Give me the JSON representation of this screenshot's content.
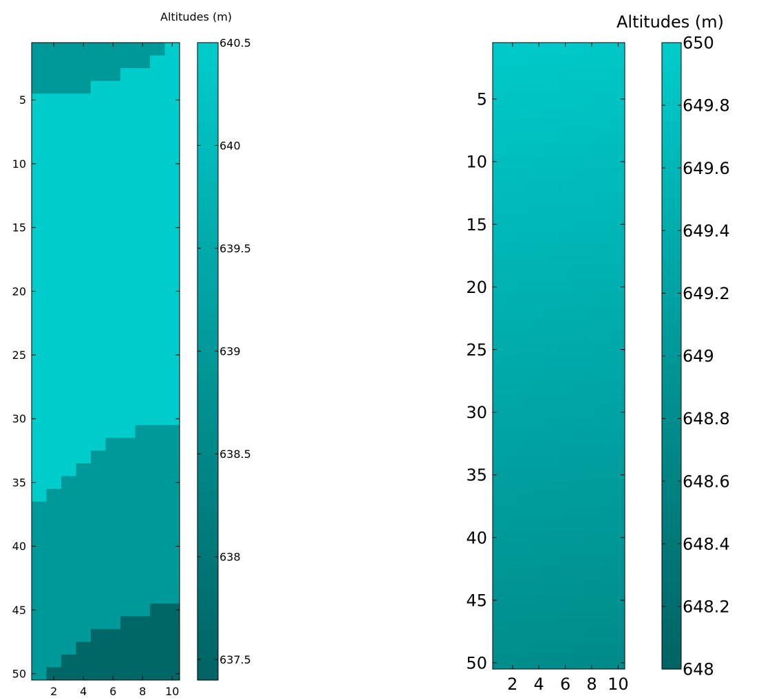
{
  "colors": {
    "low": "#006363",
    "high": "#00cccc",
    "left_levels": [
      "#006666",
      "#009999",
      "#00cccc"
    ],
    "frame": "#000000",
    "background": "#ffffff"
  },
  "chart_data": [
    {
      "type": "heatmap",
      "title": "",
      "xlabel": "",
      "ylabel": "",
      "grid": false,
      "x_ticks": [
        2,
        4,
        6,
        8,
        10
      ],
      "y_ticks": [
        5,
        10,
        15,
        20,
        25,
        30,
        35,
        40,
        45,
        50
      ],
      "xlim": [
        0.5,
        10.5
      ],
      "ylim": [
        0.5,
        50.5
      ],
      "y_direction": "reverse",
      "columns": 10,
      "rows": 50,
      "value_field": "level boundaries per column: rows above first_dark_row are 639.5 where row > last_mid_top_row, rows up to last_mid_top_row are 639.0, rows from first_mid_bottom_row to 50 are 639.0, rows from first_dark_row to 50 are 638.0",
      "levels": [
        638.0,
        639.0,
        640.0
      ],
      "regions": {
        "top_mid_last_row_by_column": [
          4,
          4,
          4,
          4,
          3,
          3,
          2,
          2,
          1,
          0
        ],
        "bottom_mid_first_row_by_column": [
          37,
          36,
          35,
          34,
          33,
          32,
          32,
          31,
          31,
          31
        ],
        "bottom_dark_first_row_by_column": [
          51,
          50,
          49,
          48,
          47,
          47,
          46,
          46,
          45,
          45
        ]
      },
      "colorbar": {
        "label": "Altitudes (m)",
        "min": 637.4,
        "max": 640.5,
        "ticks": [
          640.5,
          640,
          639.5,
          639,
          638.5,
          638,
          637.5
        ],
        "tick_labels": [
          "640.5",
          "640",
          "639.5",
          "639",
          "638.5",
          "638",
          "637.5"
        ]
      }
    },
    {
      "type": "heatmap",
      "title": "",
      "xlabel": "",
      "ylabel": "",
      "grid": false,
      "x_ticks": [
        2,
        4,
        6,
        8,
        10
      ],
      "y_ticks": [
        5,
        10,
        15,
        20,
        25,
        30,
        35,
        40,
        45,
        50
      ],
      "xlim": [
        0.5,
        10.5
      ],
      "ylim": [
        0.5,
        50.5
      ],
      "y_direction": "reverse",
      "columns": 10,
      "rows": 50,
      "value_field": "smooth gradient: 649.95 at row 1, column 1 decreasing to 648.75 at row 50, column 10",
      "corner_values": {
        "top_left": 649.95,
        "top_right": 649.9,
        "bottom_left": 648.8,
        "bottom_right": 648.75
      },
      "colorbar": {
        "label": "Altitudes (m)",
        "min": 648,
        "max": 650,
        "ticks": [
          650,
          649.8,
          649.6,
          649.4,
          649.2,
          649,
          648.8,
          648.6,
          648.4,
          648.2,
          648
        ],
        "tick_labels": [
          "650",
          "649.8",
          "649.6",
          "649.4",
          "649.2",
          "649",
          "648.8",
          "648.6",
          "648.4",
          "648.2",
          "648"
        ]
      }
    }
  ]
}
